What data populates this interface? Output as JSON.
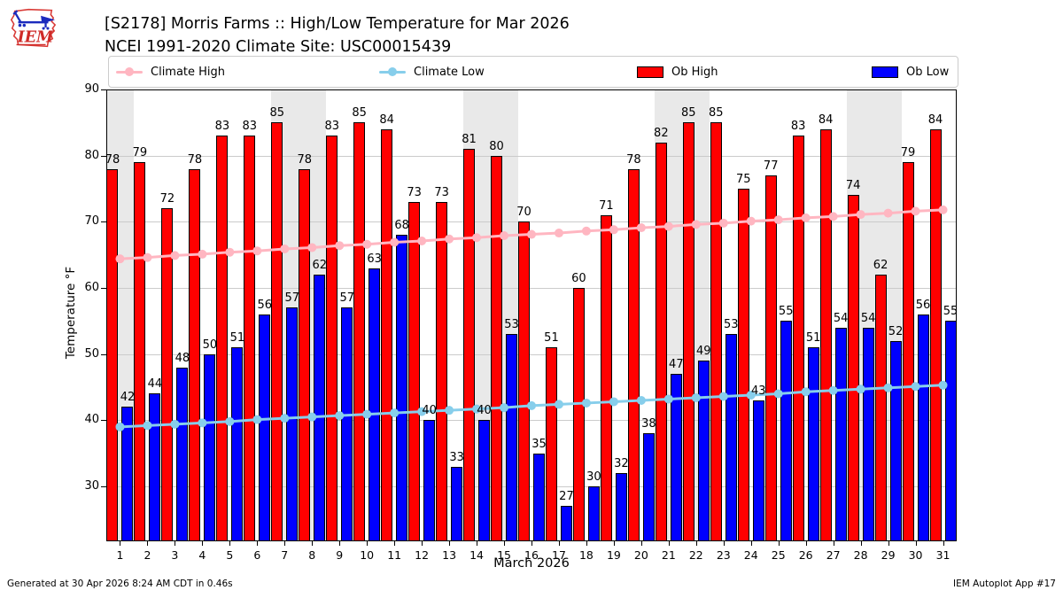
{
  "header": {
    "logo_text": "IEM",
    "title_line1": "[S2178] Morris Farms :: High/Low Temperature for Mar 2026",
    "title_line2": "NCEI 1991-2020 Climate Site: USC00015439"
  },
  "legend": [
    {
      "label": "Climate High",
      "type": "line",
      "color": "#FFB6C1"
    },
    {
      "label": "Climate Low",
      "type": "line",
      "color": "#87CEEB"
    },
    {
      "label": "Ob High",
      "type": "swatch",
      "color": "#FF0000"
    },
    {
      "label": "Ob Low",
      "type": "swatch",
      "color": "#0000FF"
    }
  ],
  "footer": {
    "left": "Generated at 30 Apr 2026 8:24 AM CDT in 0.46s",
    "right": "IEM Autoplot App #17"
  },
  "chart_data": {
    "type": "bar",
    "title": "[S2178] Morris Farms :: High/Low Temperature for Mar 2026",
    "subtitle": "NCEI 1991-2020 Climate Site: USC00015439",
    "xlabel": "March 2026",
    "ylabel": "Temperature °F",
    "x": [
      1,
      2,
      3,
      4,
      5,
      6,
      7,
      8,
      9,
      10,
      11,
      12,
      13,
      14,
      15,
      16,
      17,
      18,
      19,
      20,
      21,
      22,
      23,
      24,
      25,
      26,
      27,
      28,
      29,
      30,
      31
    ],
    "ylim": [
      21.7,
      90
    ],
    "yticks": [
      30,
      40,
      50,
      60,
      70,
      80,
      90
    ],
    "grid": true,
    "legend_position": "top",
    "weekend_shading_days": [
      1,
      7,
      8,
      14,
      15,
      21,
      22,
      28,
      29
    ],
    "weekend_shading_color": "#E9E9E9",
    "gridline_color": "#cbcbcb",
    "bar_value_labels": true,
    "series": [
      {
        "name": "Ob High",
        "type": "bar",
        "color": "#FF0000",
        "values": [
          78,
          79,
          72,
          78,
          83,
          83,
          85,
          78,
          83,
          85,
          84,
          73,
          73,
          81,
          80,
          70,
          51,
          60,
          71,
          78,
          82,
          85,
          85,
          75,
          77,
          83,
          84,
          74,
          62,
          79,
          84
        ]
      },
      {
        "name": "Ob Low",
        "type": "bar",
        "color": "#0000FF",
        "values": [
          42,
          44,
          48,
          50,
          51,
          56,
          57,
          62,
          57,
          63,
          68,
          40,
          33,
          40,
          53,
          35,
          27,
          30,
          32,
          38,
          47,
          49,
          53,
          43,
          55,
          51,
          54,
          54,
          52,
          56,
          55
        ]
      },
      {
        "name": "Climate High",
        "type": "line",
        "color": "#FFB6C1",
        "values": [
          64.4,
          64.6,
          64.9,
          65.1,
          65.4,
          65.6,
          65.9,
          66.1,
          66.4,
          66.6,
          66.9,
          67.1,
          67.4,
          67.6,
          67.9,
          68.1,
          68.3,
          68.6,
          68.8,
          69.1,
          69.3,
          69.6,
          69.8,
          70.1,
          70.3,
          70.6,
          70.8,
          71.1,
          71.3,
          71.6,
          71.8
        ]
      },
      {
        "name": "Climate Low",
        "type": "line",
        "color": "#87CEEB",
        "values": [
          39.0,
          39.2,
          39.4,
          39.6,
          39.8,
          40.1,
          40.3,
          40.5,
          40.7,
          40.9,
          41.1,
          41.3,
          41.5,
          41.7,
          41.9,
          42.2,
          42.4,
          42.6,
          42.8,
          43.0,
          43.2,
          43.4,
          43.6,
          43.8,
          44.0,
          44.3,
          44.5,
          44.7,
          44.9,
          45.1,
          45.3
        ]
      }
    ]
  }
}
